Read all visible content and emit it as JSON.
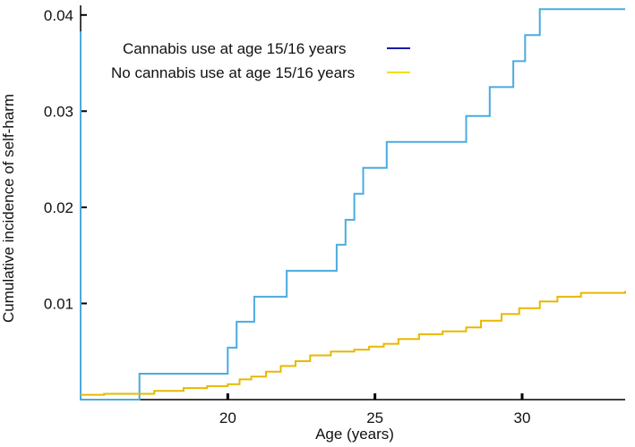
{
  "chart_data": {
    "type": "line",
    "step": true,
    "xlabel": "Age (years)",
    "ylabel": "Cumulative incidence of self-harm",
    "xlim": [
      15,
      33.5
    ],
    "ylim": [
      0,
      0.041
    ],
    "x_ticks": [
      20,
      25,
      30
    ],
    "x_tick_labels": [
      "20",
      "25",
      "30"
    ],
    "y_ticks": [
      0.01,
      0.02,
      0.03,
      0.04
    ],
    "y_tick_labels": [
      "0.01",
      "0.02",
      "0.03",
      "0.04"
    ],
    "grid": false,
    "legend_position": "top-left",
    "legend_sample_colors": [
      "#1a1aa8",
      "#f0e000"
    ],
    "series": [
      {
        "name": "Cannabis use at age 15/16 years",
        "color": "#4aabdf",
        "x": [
          15,
          15,
          17,
          20,
          20.3,
          20.9,
          22,
          23.7,
          24,
          24.3,
          24.6,
          25.4,
          28.1,
          28.9,
          29.7,
          30.1,
          30.6,
          33.5
        ],
        "y": [
          0.0383,
          0.0,
          0.0027,
          0.0054,
          0.0081,
          0.0107,
          0.0134,
          0.0161,
          0.0187,
          0.0214,
          0.0241,
          0.0268,
          0.0295,
          0.0325,
          0.0352,
          0.0379,
          0.0406,
          0.0406
        ]
      },
      {
        "name": "No cannabis use at age 15/16 years",
        "color": "#e8b800",
        "x": [
          15,
          15.8,
          17.5,
          18.5,
          19.3,
          20,
          20.4,
          20.8,
          21.3,
          21.8,
          22.3,
          22.8,
          23.5,
          24.3,
          24.8,
          25.3,
          25.8,
          26.5,
          27.3,
          28.1,
          28.6,
          29.3,
          29.9,
          30.6,
          31.2,
          32.0,
          33.5
        ],
        "y": [
          0.0005,
          0.0006,
          0.0009,
          0.0012,
          0.0014,
          0.0016,
          0.0021,
          0.0024,
          0.0029,
          0.0035,
          0.004,
          0.0046,
          0.005,
          0.0052,
          0.0055,
          0.0058,
          0.0063,
          0.0068,
          0.0071,
          0.0075,
          0.0082,
          0.0089,
          0.0095,
          0.0102,
          0.0107,
          0.0111,
          0.0113
        ]
      }
    ]
  }
}
